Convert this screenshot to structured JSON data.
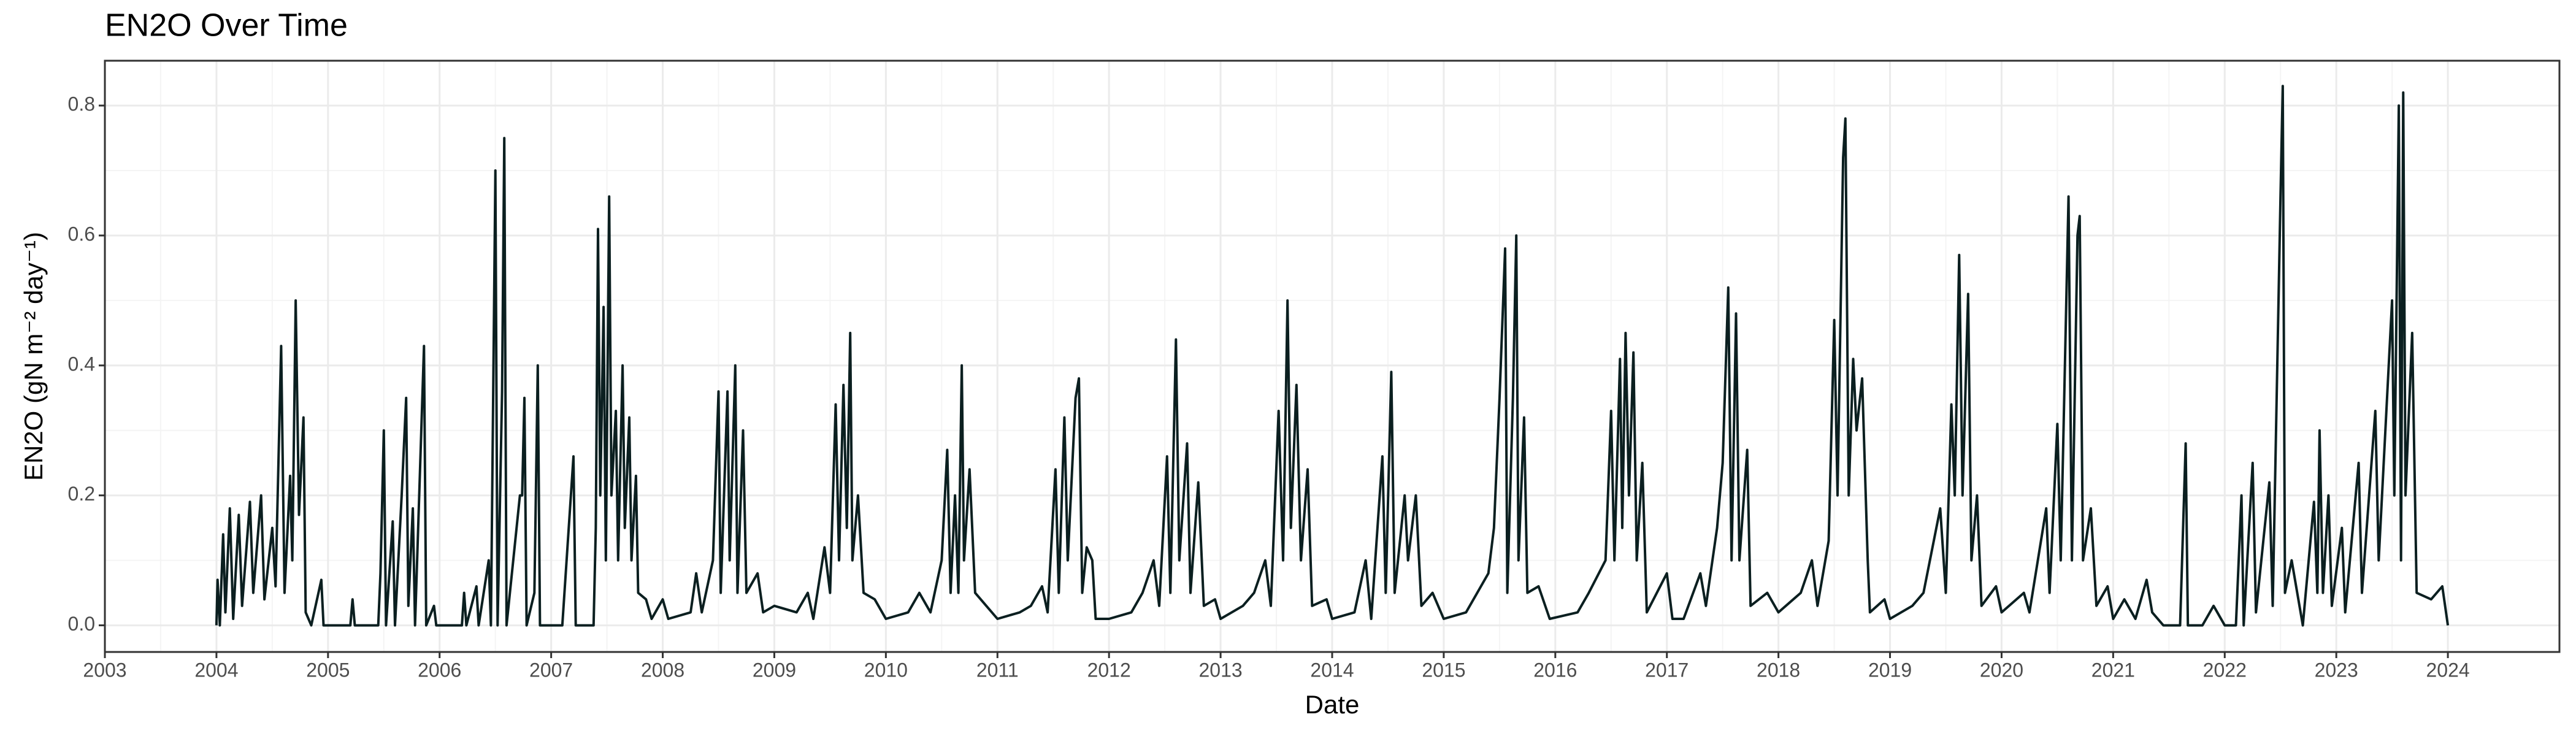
{
  "chart_data": {
    "type": "line",
    "title": "EN2O Over Time",
    "x_label": "Date",
    "y_label": "EN2O (gN m⁻² day⁻¹)",
    "xlim": [
      2003,
      2025
    ],
    "xticks": [
      2003,
      2004,
      2005,
      2006,
      2007,
      2008,
      2009,
      2010,
      2011,
      2012,
      2013,
      2014,
      2015,
      2016,
      2017,
      2018,
      2019,
      2020,
      2021,
      2022,
      2023,
      2024
    ],
    "ylim": [
      -0.041,
      0.869
    ],
    "yticks": [
      {
        "value": 0,
        "label": "0.0"
      },
      0.2,
      0.4,
      0.6,
      0.8
    ],
    "grid": true,
    "minor_grid": true,
    "series": [
      {
        "color": "#0b1f20",
        "x": [
          2004.0,
          2004.01,
          2004.03,
          2004.06,
          2004.08,
          2004.12,
          2004.15,
          2004.2,
          2004.23,
          2004.3,
          2004.33,
          2004.4,
          2004.43,
          2004.5,
          2004.53,
          2004.58,
          2004.61,
          2004.66,
          2004.68,
          2004.71,
          2004.74,
          2004.78,
          2004.8,
          2004.85,
          2004.94,
          2004.96,
          2005.2,
          2005.22,
          2005.24,
          2005.45,
          2005.47,
          2005.5,
          2005.52,
          2005.58,
          2005.6,
          2005.66,
          2005.7,
          2005.72,
          2005.76,
          2005.78,
          2005.86,
          2005.88,
          2005.95,
          2005.97,
          2006.2,
          2006.22,
          2006.24,
          2006.33,
          2006.35,
          2006.44,
          2006.46,
          2006.5,
          2006.52,
          2006.56,
          2006.58,
          2006.6,
          2006.72,
          2006.74,
          2006.76,
          2006.78,
          2006.85,
          2006.88,
          2006.9,
          2007.1,
          2007.2,
          2007.22,
          2007.38,
          2007.4,
          2007.42,
          2007.44,
          2007.47,
          2007.49,
          2007.52,
          2007.54,
          2007.58,
          2007.6,
          2007.64,
          2007.66,
          2007.7,
          2007.72,
          2007.76,
          2007.78,
          2007.85,
          2007.9,
          2008.0,
          2008.05,
          2008.25,
          2008.3,
          2008.35,
          2008.45,
          2008.5,
          2008.52,
          2008.58,
          2008.6,
          2008.65,
          2008.67,
          2008.72,
          2008.75,
          2008.85,
          2008.9,
          2009.0,
          2009.2,
          2009.3,
          2009.35,
          2009.45,
          2009.5,
          2009.55,
          2009.58,
          2009.62,
          2009.65,
          2009.68,
          2009.7,
          2009.75,
          2009.8,
          2009.9,
          2010.0,
          2010.2,
          2010.3,
          2010.4,
          2010.5,
          2010.55,
          2010.58,
          2010.62,
          2010.65,
          2010.68,
          2010.7,
          2010.75,
          2010.8,
          2010.9,
          2011.0,
          2011.2,
          2011.3,
          2011.4,
          2011.45,
          2011.52,
          2011.55,
          2011.6,
          2011.63,
          2011.7,
          2011.73,
          2011.76,
          2011.8,
          2011.85,
          2011.88,
          2012.0,
          2012.2,
          2012.3,
          2012.4,
          2012.45,
          2012.52,
          2012.55,
          2012.6,
          2012.63,
          2012.7,
          2012.73,
          2012.8,
          2012.85,
          2012.95,
          2013.0,
          2013.2,
          2013.3,
          2013.4,
          2013.45,
          2013.52,
          2013.56,
          2013.6,
          2013.63,
          2013.68,
          2013.72,
          2013.78,
          2013.82,
          2013.95,
          2014.0,
          2014.2,
          2014.3,
          2014.35,
          2014.45,
          2014.48,
          2014.53,
          2014.56,
          2014.65,
          2014.68,
          2014.75,
          2014.8,
          2014.9,
          2015.0,
          2015.2,
          2015.3,
          2015.4,
          2015.45,
          2015.5,
          2015.55,
          2015.57,
          2015.62,
          2015.65,
          2015.67,
          2015.72,
          2015.75,
          2015.85,
          2015.95,
          2016.2,
          2016.3,
          2016.45,
          2016.5,
          2016.53,
          2016.58,
          2016.6,
          2016.63,
          2016.66,
          2016.7,
          2016.73,
          2016.78,
          2016.82,
          2017.0,
          2017.05,
          2017.15,
          2017.3,
          2017.35,
          2017.45,
          2017.5,
          2017.55,
          2017.58,
          2017.62,
          2017.65,
          2017.72,
          2017.75,
          2017.9,
          2018.0,
          2018.2,
          2018.3,
          2018.35,
          2018.45,
          2018.5,
          2018.53,
          2018.58,
          2018.6,
          2018.63,
          2018.67,
          2018.7,
          2018.75,
          2018.8,
          2018.82,
          2018.95,
          2019.0,
          2019.2,
          2019.3,
          2019.45,
          2019.5,
          2019.55,
          2019.58,
          2019.62,
          2019.65,
          2019.7,
          2019.73,
          2019.78,
          2019.82,
          2019.95,
          2020.0,
          2020.2,
          2020.25,
          2020.4,
          2020.43,
          2020.5,
          2020.53,
          2020.6,
          2020.63,
          2020.68,
          2020.7,
          2020.73,
          2020.8,
          2020.85,
          2020.95,
          2021.0,
          2021.1,
          2021.2,
          2021.3,
          2021.35,
          2021.45,
          2021.6,
          2021.65,
          2021.67,
          2021.8,
          2021.9,
          2022.0,
          2022.1,
          2022.15,
          2022.17,
          2022.25,
          2022.28,
          2022.4,
          2022.43,
          2022.5,
          2022.52,
          2022.54,
          2022.6,
          2022.7,
          2022.8,
          2022.83,
          2022.85,
          2022.88,
          2022.93,
          2022.96,
          2023.05,
          2023.08,
          2023.2,
          2023.23,
          2023.35,
          2023.38,
          2023.5,
          2023.52,
          2023.56,
          2023.58,
          2023.6,
          2023.62,
          2023.68,
          2023.72,
          2023.85,
          2023.95,
          2024.0
        ],
        "values": [
          0,
          0.07,
          0,
          0.14,
          0.02,
          0.18,
          0.01,
          0.17,
          0.03,
          0.19,
          0.05,
          0.2,
          0.04,
          0.15,
          0.06,
          0.43,
          0.05,
          0.23,
          0.1,
          0.5,
          0.17,
          0.32,
          0.02,
          0,
          0.07,
          0,
          0,
          0.04,
          0,
          0,
          0.08,
          0.3,
          0,
          0.16,
          0,
          0.2,
          0.35,
          0.03,
          0.18,
          0,
          0.43,
          0,
          0.03,
          0,
          0,
          0.05,
          0,
          0.06,
          0,
          0.1,
          0,
          0.7,
          0,
          0.36,
          0.75,
          0,
          0.2,
          0.2,
          0.35,
          0,
          0.05,
          0.4,
          0,
          0,
          0.26,
          0,
          0,
          0.15,
          0.61,
          0.2,
          0.49,
          0.1,
          0.66,
          0.2,
          0.33,
          0.1,
          0.4,
          0.15,
          0.32,
          0.1,
          0.23,
          0.05,
          0.04,
          0.01,
          0.04,
          0.01,
          0.02,
          0.08,
          0.02,
          0.1,
          0.36,
          0.05,
          0.36,
          0.1,
          0.4,
          0.05,
          0.3,
          0.05,
          0.08,
          0.02,
          0.03,
          0.02,
          0.05,
          0.01,
          0.12,
          0.05,
          0.34,
          0.1,
          0.37,
          0.15,
          0.45,
          0.1,
          0.2,
          0.05,
          0.04,
          0.01,
          0.02,
          0.05,
          0.02,
          0.1,
          0.27,
          0.05,
          0.2,
          0.05,
          0.4,
          0.1,
          0.24,
          0.05,
          0.03,
          0.01,
          0.02,
          0.03,
          0.06,
          0.02,
          0.24,
          0.05,
          0.32,
          0.1,
          0.35,
          0.38,
          0.05,
          0.12,
          0.1,
          0.01,
          0.01,
          0.02,
          0.05,
          0.1,
          0.03,
          0.26,
          0.05,
          0.44,
          0.1,
          0.28,
          0.05,
          0.22,
          0.03,
          0.04,
          0.01,
          0.03,
          0.05,
          0.1,
          0.03,
          0.33,
          0.1,
          0.5,
          0.15,
          0.37,
          0.1,
          0.24,
          0.03,
          0.04,
          0.01,
          0.02,
          0.1,
          0.01,
          0.26,
          0.05,
          0.39,
          0.05,
          0.2,
          0.1,
          0.2,
          0.03,
          0.05,
          0.01,
          0.02,
          0.05,
          0.08,
          0.15,
          0.35,
          0.58,
          0.05,
          0.35,
          0.6,
          0.1,
          0.32,
          0.05,
          0.06,
          0.01,
          0.02,
          0.05,
          0.1,
          0.33,
          0.1,
          0.41,
          0.15,
          0.45,
          0.2,
          0.42,
          0.1,
          0.25,
          0.02,
          0.08,
          0.01,
          0.01,
          0.08,
          0.03,
          0.15,
          0.25,
          0.52,
          0.1,
          0.48,
          0.1,
          0.27,
          0.03,
          0.05,
          0.02,
          0.05,
          0.1,
          0.03,
          0.13,
          0.47,
          0.2,
          0.72,
          0.78,
          0.2,
          0.41,
          0.3,
          0.38,
          0.1,
          0.02,
          0.04,
          0.01,
          0.03,
          0.05,
          0.18,
          0.05,
          0.34,
          0.2,
          0.57,
          0.2,
          0.51,
          0.1,
          0.2,
          0.03,
          0.06,
          0.02,
          0.05,
          0.02,
          0.18,
          0.05,
          0.31,
          0.1,
          0.66,
          0.1,
          0.6,
          0.63,
          0.1,
          0.18,
          0.03,
          0.06,
          0.01,
          0.04,
          0.01,
          0.07,
          0.02,
          0,
          0,
          0.28,
          0,
          0,
          0.03,
          0,
          0,
          0.2,
          0,
          0.25,
          0.02,
          0.22,
          0.03,
          0.66,
          0.83,
          0.05,
          0.1,
          0,
          0.19,
          0.05,
          0.3,
          0.05,
          0.2,
          0.03,
          0.15,
          0.02,
          0.25,
          0.05,
          0.33,
          0.1,
          0.5,
          0.2,
          0.8,
          0.1,
          0.82,
          0.2,
          0.45,
          0.05,
          0.04,
          0.06,
          0
        ]
      }
    ]
  }
}
